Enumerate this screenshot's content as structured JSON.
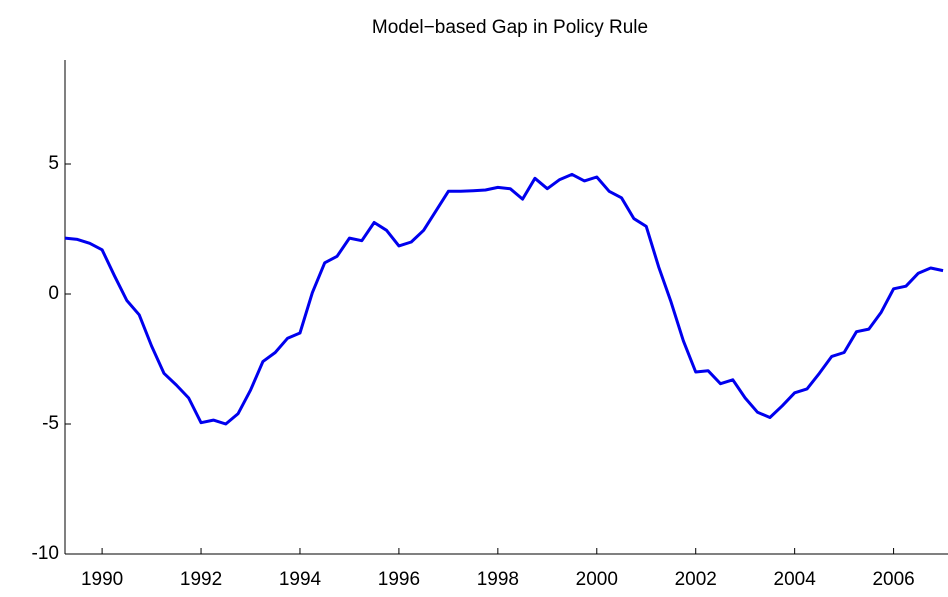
{
  "chart_data": {
    "type": "line",
    "title": "Model−based Gap in Policy Rule",
    "x": [
      1989.25,
      1989.5,
      1989.75,
      1990.0,
      1990.25,
      1990.5,
      1990.75,
      1991.0,
      1991.25,
      1991.5,
      1991.75,
      1992.0,
      1992.25,
      1992.5,
      1992.75,
      1993.0,
      1993.25,
      1993.5,
      1993.75,
      1994.0,
      1994.25,
      1994.5,
      1994.75,
      1995.0,
      1995.25,
      1995.5,
      1995.75,
      1996.0,
      1996.25,
      1996.5,
      1996.75,
      1997.0,
      1997.25,
      1997.5,
      1997.75,
      1998.0,
      1998.25,
      1998.5,
      1998.75,
      1999.0,
      1999.25,
      1999.5,
      1999.75,
      2000.0,
      2000.25,
      2000.5,
      2000.75,
      2001.0,
      2001.25,
      2001.5,
      2001.75,
      2002.0,
      2002.25,
      2002.5,
      2002.75,
      2003.0,
      2003.25,
      2003.5,
      2003.75,
      2004.0,
      2004.25,
      2004.5,
      2004.75,
      2005.0,
      2005.25,
      2005.5,
      2005.75,
      2006.0,
      2006.25,
      2006.5,
      2006.75,
      2007.0
    ],
    "series": [
      {
        "color": "#0000ee",
        "values": [
          2.15,
          2.1,
          1.95,
          1.7,
          0.7,
          -0.25,
          -0.8,
          -2.0,
          -3.05,
          -3.5,
          -4.0,
          -4.95,
          -4.85,
          -5.0,
          -4.6,
          -3.7,
          -2.6,
          -2.25,
          -1.7,
          -1.5,
          0.05,
          1.2,
          1.45,
          2.15,
          2.05,
          2.75,
          2.45,
          1.85,
          2.0,
          2.45,
          3.2,
          3.95,
          3.95,
          3.97,
          4.0,
          4.1,
          4.05,
          3.65,
          4.45,
          4.05,
          4.4,
          4.6,
          4.35,
          4.5,
          3.95,
          3.7,
          2.9,
          2.6,
          1.05,
          -0.3,
          -1.8,
          -3.0,
          -2.95,
          -3.45,
          -3.3,
          -4.0,
          -4.55,
          -4.75,
          -4.3,
          -3.8,
          -3.65,
          -3.05,
          -2.4,
          -2.25,
          -1.45,
          -1.35,
          -0.7,
          0.2,
          0.3,
          0.8,
          1.0,
          0.9
        ]
      }
    ],
    "xlim": [
      1989.25,
      2007.1
    ],
    "xticks": [
      1990,
      1992,
      1994,
      1996,
      1998,
      2000,
      2002,
      2004,
      2006
    ],
    "ylim": [
      -10,
      9
    ],
    "yticks": [
      -10,
      -5,
      0,
      5
    ]
  }
}
